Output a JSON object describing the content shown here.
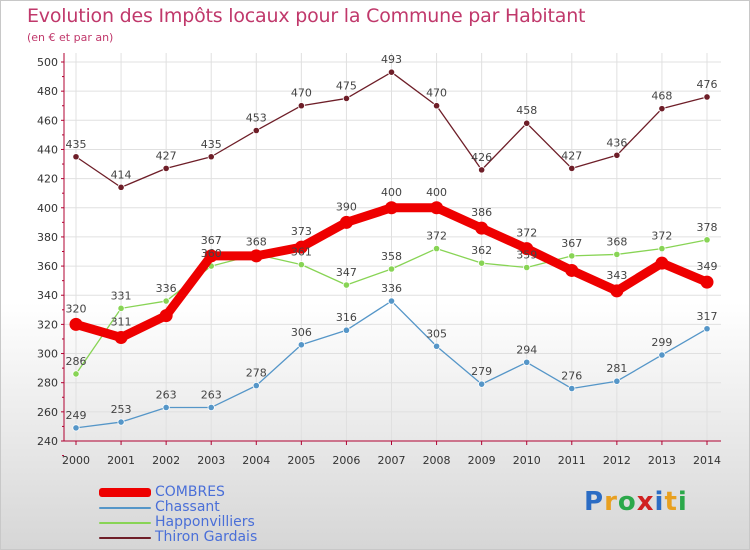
{
  "chart_data": {
    "type": "line",
    "title": "Evolution des Impôts locaux pour la Commune par Habitant",
    "subtitle": "(en € et par an)",
    "x": [
      "2000",
      "2001",
      "2002",
      "2003",
      "2004",
      "2005",
      "2006",
      "2007",
      "2008",
      "2009",
      "2010",
      "2011",
      "2012",
      "2013",
      "2014"
    ],
    "ylim": [
      240,
      500
    ],
    "yticks": [
      240,
      260,
      280,
      300,
      320,
      340,
      360,
      380,
      400,
      420,
      440,
      460,
      480,
      500
    ],
    "grid": true,
    "legend_position": "bottom-left",
    "series": [
      {
        "name": "COMBRES",
        "color": "#ee0000",
        "values": [
          320,
          311,
          326,
          367,
          367,
          373,
          390,
          400,
          400,
          386,
          372,
          357,
          343,
          362,
          349
        ],
        "labels": [
          "320",
          "311",
          "",
          "367",
          "",
          "373",
          "390",
          "400",
          "400",
          "386",
          "372",
          "",
          "343",
          "",
          "349"
        ]
      },
      {
        "name": "Chassant",
        "color": "#5596c8",
        "values": [
          249,
          253,
          263,
          263,
          278,
          306,
          316,
          336,
          305,
          279,
          294,
          276,
          281,
          299,
          317
        ],
        "labels": [
          "249",
          "253",
          "263",
          "263",
          "278",
          "306",
          "316",
          "336",
          "305",
          "279",
          "294",
          "276",
          "281",
          "299",
          "317"
        ]
      },
      {
        "name": "Happonvilliers",
        "color": "#88d455",
        "values": [
          286,
          331,
          336,
          360,
          368,
          361,
          347,
          358,
          372,
          362,
          359,
          367,
          368,
          372,
          378
        ],
        "labels": [
          "286",
          "331",
          "336",
          "360",
          "368",
          "361",
          "347",
          "358",
          "372",
          "362",
          "359",
          "367",
          "368",
          "372",
          "378"
        ]
      },
      {
        "name": "Thiron Gardais",
        "color": "#6e1e28",
        "values": [
          435,
          414,
          427,
          435,
          453,
          470,
          475,
          493,
          470,
          426,
          458,
          427,
          436,
          468,
          476
        ],
        "labels": [
          "435",
          "414",
          "427",
          "435",
          "453",
          "470",
          "475",
          "493",
          "470",
          "426",
          "458",
          "427",
          "436",
          "468",
          "476"
        ]
      }
    ]
  },
  "logo": {
    "letters": [
      "P",
      "r",
      "o",
      "x",
      "i",
      "t",
      "i"
    ],
    "colors": [
      "#2b6cc4",
      "#e8a020",
      "#2ba84a",
      "#d02020",
      "#2b6cc4",
      "#e8a020",
      "#2ba84a"
    ]
  }
}
